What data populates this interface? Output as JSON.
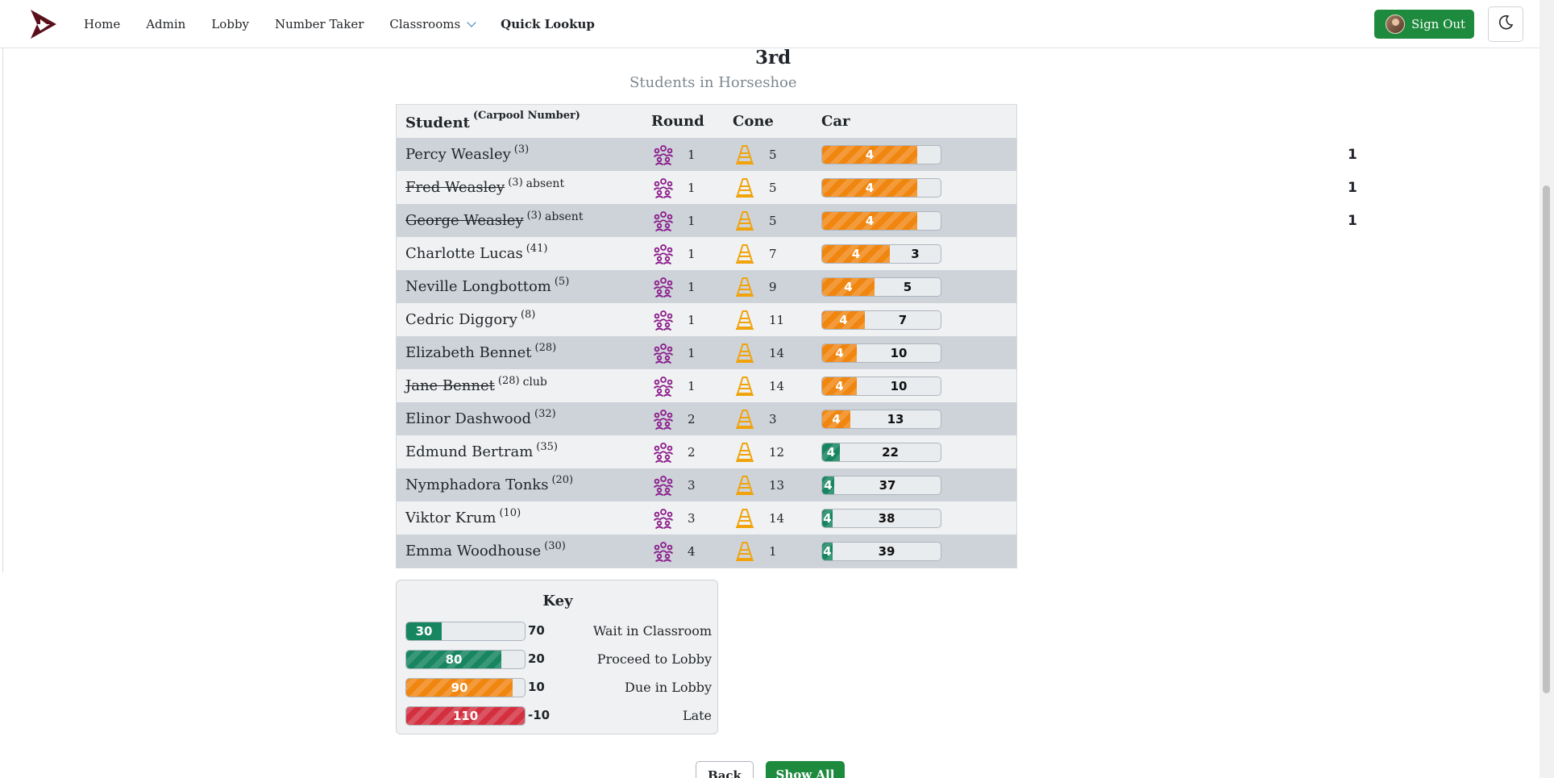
{
  "nav": {
    "items": [
      {
        "key": "home",
        "label": "Home"
      },
      {
        "key": "admin",
        "label": "Admin"
      },
      {
        "key": "lobby",
        "label": "Lobby"
      },
      {
        "key": "number-taker",
        "label": "Number Taker"
      },
      {
        "key": "classrooms",
        "label": "Classrooms",
        "dropdown": true
      },
      {
        "key": "quick-lookup",
        "label": "Quick Lookup",
        "active": true
      }
    ],
    "sign_out_label": "Sign Out",
    "theme_icon": "moon-icon",
    "brand_icon": "flag-logo-icon"
  },
  "page": {
    "title": "3rd",
    "subtitle": "Students in Horseshoe"
  },
  "table": {
    "headers": {
      "student": "Student",
      "carpool": "(Carpool Number)",
      "round": "Round",
      "cone": "Cone",
      "car": "Car"
    },
    "round_icon": "group-icon",
    "cone_icon": "traffic-cone-icon",
    "rows": [
      {
        "name": "Percy Weasley",
        "carpool": "(3)",
        "note": "",
        "strike": false,
        "round": "1",
        "cone": "5",
        "car_fill": "4",
        "car_remaining": "",
        "car_after": "1",
        "fill_fraction": 0.8,
        "color": "orange"
      },
      {
        "name": "Fred Weasley",
        "carpool": "(3)",
        "note": "absent",
        "strike": true,
        "round": "1",
        "cone": "5",
        "car_fill": "4",
        "car_remaining": "",
        "car_after": "1",
        "fill_fraction": 0.8,
        "color": "orange"
      },
      {
        "name": "George Weasley",
        "carpool": "(3)",
        "note": "absent",
        "strike": true,
        "round": "1",
        "cone": "5",
        "car_fill": "4",
        "car_remaining": "",
        "car_after": "1",
        "fill_fraction": 0.8,
        "color": "orange"
      },
      {
        "name": "Charlotte Lucas",
        "carpool": "(41)",
        "note": "",
        "strike": false,
        "round": "1",
        "cone": "7",
        "car_fill": "4",
        "car_remaining": "3",
        "car_after": "",
        "fill_fraction": 0.57,
        "color": "orange"
      },
      {
        "name": "Neville Longbottom",
        "carpool": "(5)",
        "note": "",
        "strike": false,
        "round": "1",
        "cone": "9",
        "car_fill": "4",
        "car_remaining": "5",
        "car_after": "",
        "fill_fraction": 0.44,
        "color": "orange"
      },
      {
        "name": "Cedric Diggory",
        "carpool": "(8)",
        "note": "",
        "strike": false,
        "round": "1",
        "cone": "11",
        "car_fill": "4",
        "car_remaining": "7",
        "car_after": "",
        "fill_fraction": 0.36,
        "color": "orange"
      },
      {
        "name": "Elizabeth Bennet",
        "carpool": "(28)",
        "note": "",
        "strike": false,
        "round": "1",
        "cone": "14",
        "car_fill": "4",
        "car_remaining": "10",
        "car_after": "",
        "fill_fraction": 0.29,
        "color": "orange"
      },
      {
        "name": "Jane Bennet",
        "carpool": "(28)",
        "note": "club",
        "strike": true,
        "round": "1",
        "cone": "14",
        "car_fill": "4",
        "car_remaining": "10",
        "car_after": "",
        "fill_fraction": 0.29,
        "color": "orange"
      },
      {
        "name": "Elinor Dashwood",
        "carpool": "(32)",
        "note": "",
        "strike": false,
        "round": "2",
        "cone": "3",
        "car_fill": "4",
        "car_remaining": "13",
        "car_after": "",
        "fill_fraction": 0.24,
        "color": "orange"
      },
      {
        "name": "Edmund Bertram",
        "carpool": "(35)",
        "note": "",
        "strike": false,
        "round": "2",
        "cone": "12",
        "car_fill": "4",
        "car_remaining": "22",
        "car_after": "",
        "fill_fraction": 0.15,
        "color": "green"
      },
      {
        "name": "Nymphadora Tonks",
        "carpool": "(20)",
        "note": "",
        "strike": false,
        "round": "3",
        "cone": "13",
        "car_fill": "4",
        "car_remaining": "37",
        "car_after": "",
        "fill_fraction": 0.1,
        "color": "green"
      },
      {
        "name": "Viktor Krum",
        "carpool": "(10)",
        "note": "",
        "strike": false,
        "round": "3",
        "cone": "14",
        "car_fill": "4",
        "car_remaining": "38",
        "car_after": "",
        "fill_fraction": 0.09,
        "color": "green"
      },
      {
        "name": "Emma Woodhouse",
        "carpool": "(30)",
        "note": "",
        "strike": false,
        "round": "4",
        "cone": "1",
        "car_fill": "4",
        "car_remaining": "39",
        "car_after": "",
        "fill_fraction": 0.09,
        "color": "green"
      }
    ]
  },
  "key": {
    "title": "Key",
    "rows": [
      {
        "fill": "30",
        "value": "70",
        "label": "Wait in Classroom",
        "fill_fraction": 0.3,
        "color": "green",
        "striped": false
      },
      {
        "fill": "80",
        "value": "20",
        "label": "Proceed to Lobby",
        "fill_fraction": 0.8,
        "color": "green",
        "striped": true
      },
      {
        "fill": "90",
        "value": "10",
        "label": "Due in Lobby",
        "fill_fraction": 0.9,
        "color": "orange",
        "striped": true
      },
      {
        "fill": "110",
        "value": "-10",
        "label": "Late",
        "fill_fraction": 1.0,
        "color": "red",
        "striped": true
      }
    ]
  },
  "buttons": {
    "back": "Back",
    "show_all": "Show All"
  }
}
